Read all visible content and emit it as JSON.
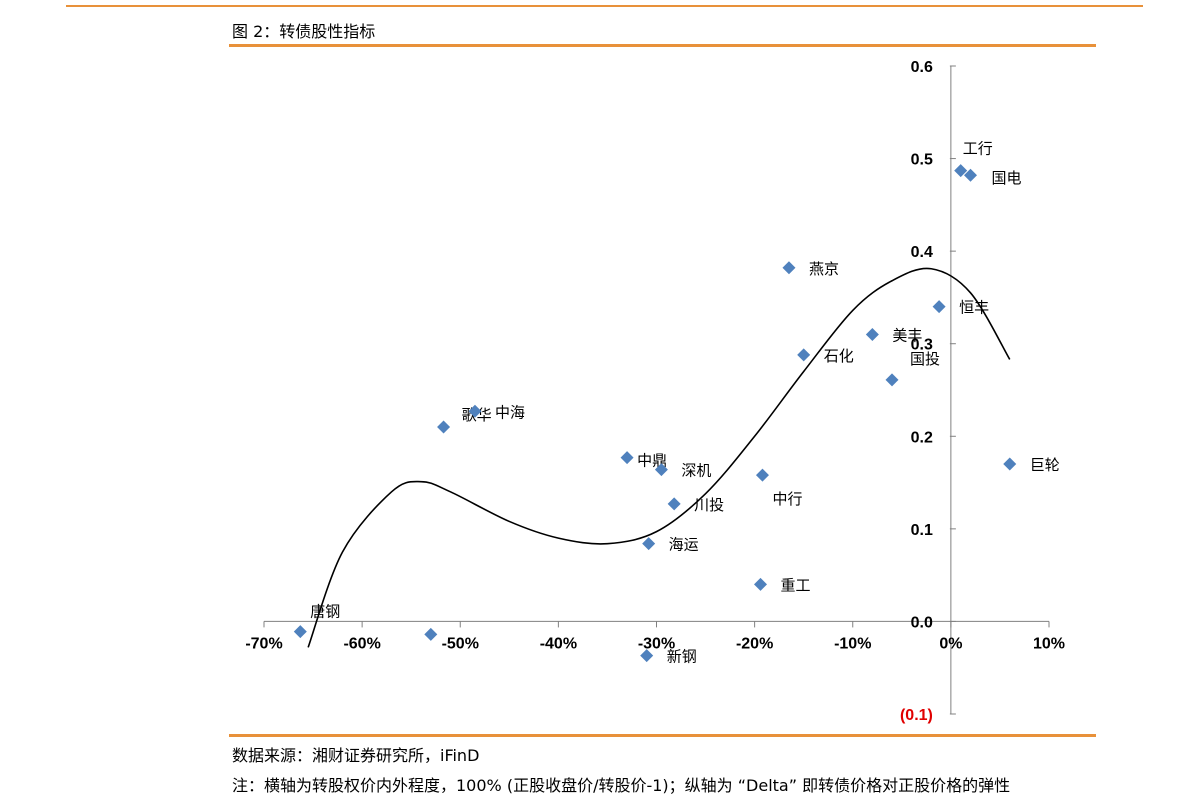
{
  "figure": {
    "title": "图 2：转债股性指标",
    "source": "数据来源：湘财证券研究所，iFinD",
    "note": "注：横轴为转股权价内外程度，100% (正股收盘价/转股价-1)；纵轴为 “Delta” 即转债价格对正股价格的弹性"
  },
  "chart_data": {
    "type": "scatter",
    "xlim": [
      -70,
      10
    ],
    "ylim": [
      -0.1,
      0.6
    ],
    "x_ticks": [
      "-70%",
      "-60%",
      "-50%",
      "-40%",
      "-30%",
      "-20%",
      "-10%",
      "0%",
      "10%"
    ],
    "y_ticks": [
      "(0.1)",
      "0.0",
      "0.1",
      "0.2",
      "0.3",
      "0.4",
      "0.5",
      "0.6"
    ],
    "marker_color": "#4f81bd",
    "negative_tick_color": "#e00000",
    "grid": false,
    "points": [
      {
        "label": "工行",
        "x": 1.0,
        "y": 0.487
      },
      {
        "label": "国电",
        "x": 2.0,
        "y": 0.482
      },
      {
        "label": "燕京",
        "x": -16.5,
        "y": 0.382
      },
      {
        "label": "恒丰",
        "x": -1.2,
        "y": 0.34
      },
      {
        "label": "美丰",
        "x": -8.0,
        "y": 0.31
      },
      {
        "label": "石化",
        "x": -15.0,
        "y": 0.288
      },
      {
        "label": "国投",
        "x": -6.0,
        "y": 0.261
      },
      {
        "label": "歌华",
        "x": -51.7,
        "y": 0.21
      },
      {
        "label": "中海",
        "x": -48.5,
        "y": 0.227
      },
      {
        "label": "巨轮",
        "x": 6.0,
        "y": 0.17
      },
      {
        "label": "中鼎",
        "x": -33.0,
        "y": 0.177
      },
      {
        "label": "深机",
        "x": -29.5,
        "y": 0.164
      },
      {
        "label": "中行",
        "x": -19.2,
        "y": 0.158
      },
      {
        "label": "川投",
        "x": -28.2,
        "y": 0.127
      },
      {
        "label": "海运",
        "x": -30.8,
        "y": 0.084
      },
      {
        "label": "重工",
        "x": -19.4,
        "y": 0.04
      },
      {
        "label": "唐钢",
        "x": -66.3,
        "y": -0.011
      },
      {
        "label": "",
        "x": -53.0,
        "y": -0.014
      },
      {
        "label": "新钢",
        "x": -31.0,
        "y": -0.037
      }
    ],
    "trendline": {
      "type": "polynomial",
      "from": -65.5,
      "to": 6.0,
      "color": "#000000"
    }
  }
}
